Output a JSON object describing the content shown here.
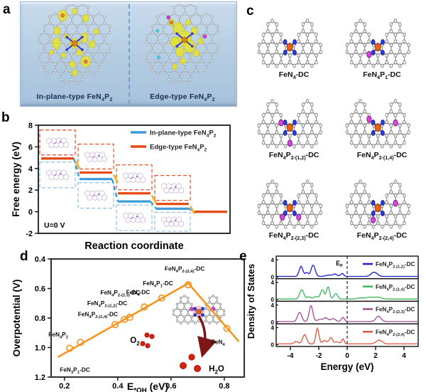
{
  "panels": {
    "a": {
      "letter": "a",
      "captions": {
        "left": "In-plane-type  FeN~4~P~2~",
        "right": "Edge-type  FeN~4~P~2~"
      }
    },
    "b": {
      "letter": "b",
      "chart_data": {
        "type": "line",
        "subtype": "free-energy-step-diagram",
        "xlabel": "Reaction coordinate",
        "ylabel": "Free energy (eV)",
        "ylim": [
          -2,
          8
        ],
        "yticks": [
          8,
          6,
          4,
          2,
          0,
          -2
        ],
        "annotation": "U=0 V",
        "n_steps": 5,
        "legend_position": "top-right",
        "series": [
          {
            "name": "In-plane-type FeN~4~P~2~",
            "color": "#3d9bd8",
            "values": [
              4.92,
              3.02,
              0.95,
              0.28,
              0.0
            ]
          },
          {
            "name": "Edge-type  FeN~4~P~2~",
            "color": "#e8490f",
            "values": [
              4.92,
              3.62,
              1.7,
              0.72,
              0.0
            ]
          }
        ],
        "connector_colors": {
          "blue_dash": "#3d9bd8",
          "yellow_dash": "#f0b43a"
        }
      }
    },
    "c": {
      "letter": "c",
      "molecules": [
        {
          "label": "FeN~4~-DC"
        },
        {
          "label": "FeN~4~P~1~-DC"
        },
        {
          "label": "FeN~4~P~2-(1,2)~-DC"
        },
        {
          "label": "FeN~4~P~2-(1,4)~-DC"
        },
        {
          "label": "FeN~4~P~2-(2,3)~-DC"
        },
        {
          "label": "FeN~4~P~2-(2,4)~-DC"
        }
      ],
      "atom_colors": {
        "carbon": "#8f8f8f",
        "nitrogen": "#2a3bd6",
        "phosphorus": "#d44ad4",
        "iron": "#e8650f"
      }
    },
    "d": {
      "letter": "d",
      "chart_data": {
        "type": "scatter",
        "subtype": "volcano-plot",
        "xlabel": "E~*OH~ (eV)",
        "ylabel": "Overpotential (V)",
        "xlim": [
          0.15,
          0.875
        ],
        "ylim": [
          1.2,
          0.4
        ],
        "xticks": [
          0.2,
          0.4,
          0.6,
          0.8
        ],
        "yticks": [
          0.4,
          0.6,
          0.8,
          1.0,
          1.2
        ],
        "line_color": "#f5941f",
        "volcano_line": [
          [
            0.175,
            1.065
          ],
          [
            0.665,
            0.565
          ],
          [
            0.855,
            0.96
          ]
        ],
        "points": [
          {
            "x": 0.22,
            "y": 1.005,
            "label": "FeN~3~P~1~-DC"
          },
          {
            "x": 0.26,
            "y": 0.965,
            "label": "FeN~4~P~2~"
          },
          {
            "x": 0.39,
            "y": 0.845,
            "label": "FeN~4~P~2-(1,4)~-DC"
          },
          {
            "x": 0.425,
            "y": 0.81,
            "label": "FeN~4~P~2-(1,2)~-DC"
          },
          {
            "x": 0.445,
            "y": 0.795,
            "label": "FeN~4~P~2-(2,3)~-DC"
          },
          {
            "x": 0.5,
            "y": 0.725,
            "label": "FeN~4~-DC"
          },
          {
            "x": 0.565,
            "y": 0.665,
            "label": "FeN~4~P~1~-DC"
          },
          {
            "x": 0.665,
            "y": 0.575,
            "label": "FeN~4~P~2-(2,4)~-DC"
          },
          {
            "x": 0.81,
            "y": 0.87,
            "label": "FeN~4~"
          }
        ],
        "annotations": {
          "reactant": "O~2~",
          "product": "H~2~O"
        }
      }
    },
    "e": {
      "letter": "e",
      "chart_data": {
        "type": "line",
        "subtype": "density-of-states",
        "xlabel": "Energy (eV)",
        "ylabel": "Density of States",
        "xlim": [
          -5,
          5
        ],
        "xticks": [
          -4,
          -2,
          0,
          2,
          4
        ],
        "panel_yticks": [
          0,
          4
        ],
        "fermi_label": "E~F~",
        "series": [
          {
            "name": "FeN~4~P~2-(1,2)~-DC",
            "color": "#1c1ccf",
            "base": 0.12,
            "peaks": [
              [
                -3.25,
                2.4,
                0.18
              ],
              [
                -2.85,
                0.9,
                0.15
              ],
              [
                -2.4,
                2.7,
                0.2
              ],
              [
                -1.3,
                0.3,
                0.3
              ],
              [
                -0.85,
                0.55,
                0.2
              ],
              [
                -0.35,
                0.7,
                0.15
              ],
              [
                1.9,
                1.0,
                0.3
              ]
            ]
          },
          {
            "name": "FeN~4~P~2-(1,4)~-DC",
            "color": "#3cb85c",
            "base": 0.12,
            "peaks": [
              [
                -3.2,
                2.2,
                0.2
              ],
              [
                -2.7,
                0.5,
                0.2
              ],
              [
                -2.2,
                0.6,
                0.2
              ],
              [
                -1.75,
                2.2,
                0.18
              ],
              [
                -1.35,
                2.9,
                0.15
              ],
              [
                -0.8,
                1.3,
                0.18
              ],
              [
                0.9,
                0.25,
                0.3
              ],
              [
                1.6,
                0.45,
                0.4
              ],
              [
                2.2,
                0.4,
                0.3
              ]
            ]
          },
          {
            "name": "FeN~4~P~2-(2,3)~-DC",
            "color": "#a34a96",
            "base": 0.12,
            "peaks": [
              [
                -3.35,
                2.2,
                0.2
              ],
              [
                -2.55,
                3.8,
                0.18
              ],
              [
                -1.9,
                0.5,
                0.3
              ],
              [
                -1.5,
                0.8,
                0.2
              ],
              [
                -1.0,
                0.7,
                0.25
              ],
              [
                -0.3,
                1.0,
                0.15
              ],
              [
                2.2,
                1.3,
                0.25
              ]
            ]
          },
          {
            "name": "FeN~4~P~2-(2,4)~-DC",
            "color": "#e2523c",
            "base": 0.18,
            "peaks": [
              [
                -3.6,
                0.6,
                0.2
              ],
              [
                -3.0,
                2.2,
                0.2
              ],
              [
                -2.1,
                3.7,
                0.15
              ],
              [
                -1.6,
                0.8,
                0.2
              ],
              [
                -1.15,
                1.5,
                0.18
              ],
              [
                -0.7,
                0.5,
                0.2
              ],
              [
                -0.3,
                1.2,
                0.12
              ],
              [
                2.25,
                0.9,
                0.3
              ]
            ]
          }
        ]
      }
    }
  }
}
